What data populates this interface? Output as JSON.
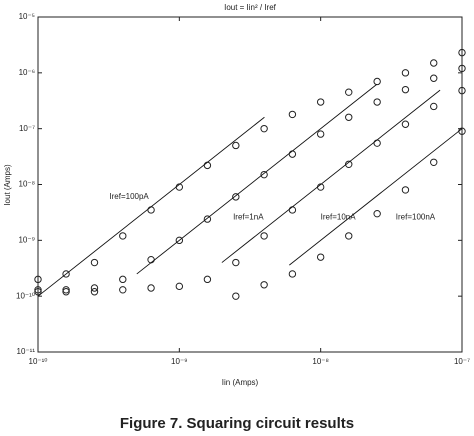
{
  "chart_data": {
    "type": "scatter",
    "title": "Iout = Iin² / Iref",
    "xlabel": "Iin (Amps)",
    "ylabel": "Iout (Amps)",
    "caption": "Figure 7. Squaring circuit results",
    "xscale": "log",
    "yscale": "log",
    "xlim": [
      1e-10,
      1e-07
    ],
    "ylim": [
      1e-11,
      1e-05
    ],
    "xticks": [
      {
        "value": 1e-10,
        "label": "10⁻¹⁰"
      },
      {
        "value": 1e-09,
        "label": "10⁻⁹"
      },
      {
        "value": 1e-08,
        "label": "10⁻⁸"
      },
      {
        "value": 1e-07,
        "label": "10⁻⁷"
      }
    ],
    "yticks": [
      {
        "value": 1e-11,
        "label": "10⁻¹¹"
      },
      {
        "value": 1e-10,
        "label": "10⁻¹⁰"
      },
      {
        "value": 1e-09,
        "label": "10⁻⁹"
      },
      {
        "value": 1e-08,
        "label": "10⁻⁸"
      },
      {
        "value": 1e-07,
        "label": "10⁻⁷"
      },
      {
        "value": 1e-06,
        "label": "10⁻⁶"
      },
      {
        "value": 1e-05,
        "label": "10⁻⁵"
      }
    ],
    "series": [
      {
        "marker": "circle",
        "color": "#222222",
        "x": [
          1e-10,
          1.58e-10,
          2.51e-10,
          3.98e-10,
          6.31e-10,
          1e-09,
          1.58e-09,
          2.51e-09,
          3.98e-09,
          6.31e-09,
          1e-08,
          1.58e-08,
          2.51e-08,
          3.98e-08,
          6.31e-08,
          1e-07
        ],
        "values": [
          2e-10,
          2.5e-10,
          4e-10,
          1.2e-09,
          3.5e-09,
          9e-09,
          2.2e-08,
          5e-08,
          1e-07,
          1.8e-07,
          3e-07,
          4.5e-07,
          7e-07,
          1e-06,
          1.5e-06,
          2.3e-06
        ]
      },
      {
        "marker": "circle",
        "color": "#222222",
        "x": [
          1e-10,
          1.58e-10,
          2.51e-10,
          3.98e-10,
          6.31e-10,
          1e-09,
          1.58e-09,
          2.51e-09,
          3.98e-09,
          6.31e-09,
          1e-08,
          1.58e-08,
          2.51e-08,
          3.98e-08,
          6.31e-08,
          1e-07
        ],
        "values": [
          1.3e-10,
          1.3e-10,
          1.4e-10,
          2e-10,
          4.5e-10,
          1e-09,
          2.4e-09,
          6e-09,
          1.5e-08,
          3.5e-08,
          8e-08,
          1.6e-07,
          3e-07,
          5e-07,
          8e-07,
          1.2e-06
        ]
      },
      {
        "marker": "circle",
        "color": "#222222",
        "x": [
          1e-10,
          1.58e-10,
          2.51e-10,
          3.98e-10,
          6.31e-10,
          1e-09,
          1.58e-09,
          2.51e-09,
          3.98e-09,
          6.31e-09,
          1e-08,
          1.58e-08,
          2.51e-08,
          3.98e-08,
          6.31e-08,
          1e-07
        ],
        "values": [
          1.2e-10,
          1.2e-10,
          1.2e-10,
          1.3e-10,
          1.4e-10,
          1.5e-10,
          2e-10,
          4e-10,
          1.2e-09,
          3.5e-09,
          9e-09,
          2.3e-08,
          5.5e-08,
          1.2e-07,
          2.5e-07,
          4.8e-07
        ]
      },
      {
        "marker": "circle",
        "color": "#222222",
        "x": [
          2.51e-09,
          3.98e-09,
          6.31e-09,
          1e-08,
          1.58e-08,
          2.51e-08,
          3.98e-08,
          6.31e-08,
          1e-07
        ],
        "values": [
          1e-10,
          1.6e-10,
          2.5e-10,
          5e-10,
          1.2e-09,
          3e-09,
          8e-09,
          2.5e-08,
          9e-08
        ]
      },
      {
        "marker": "line",
        "color": "#111111",
        "x": [
          1e-10,
          4e-09
        ],
        "values": [
          1e-10,
          1.6e-07
        ]
      },
      {
        "marker": "line",
        "color": "#111111",
        "x": [
          5e-10,
          2.5e-08
        ],
        "values": [
          2.5e-10,
          6.25e-07
        ]
      },
      {
        "marker": "line",
        "color": "#111111",
        "x": [
          2e-09,
          7e-08
        ],
        "values": [
          4e-10,
          4.9e-07
        ]
      },
      {
        "marker": "line",
        "color": "#111111",
        "x": [
          6e-09,
          1e-07
        ],
        "values": [
          3.6e-10,
          1e-07
        ]
      }
    ],
    "annotations": [
      {
        "text": "Iref=100pA",
        "x": 3.2e-10,
        "y": 6e-09
      },
      {
        "text": "Iref=1nA",
        "x": 2.4e-09,
        "y": 2.6e-09
      },
      {
        "text": "Iref=10nA",
        "x": 1e-08,
        "y": 2.6e-09
      },
      {
        "text": "Iref=100nA",
        "x": 3.4e-08,
        "y": 2.6e-09
      }
    ]
  }
}
